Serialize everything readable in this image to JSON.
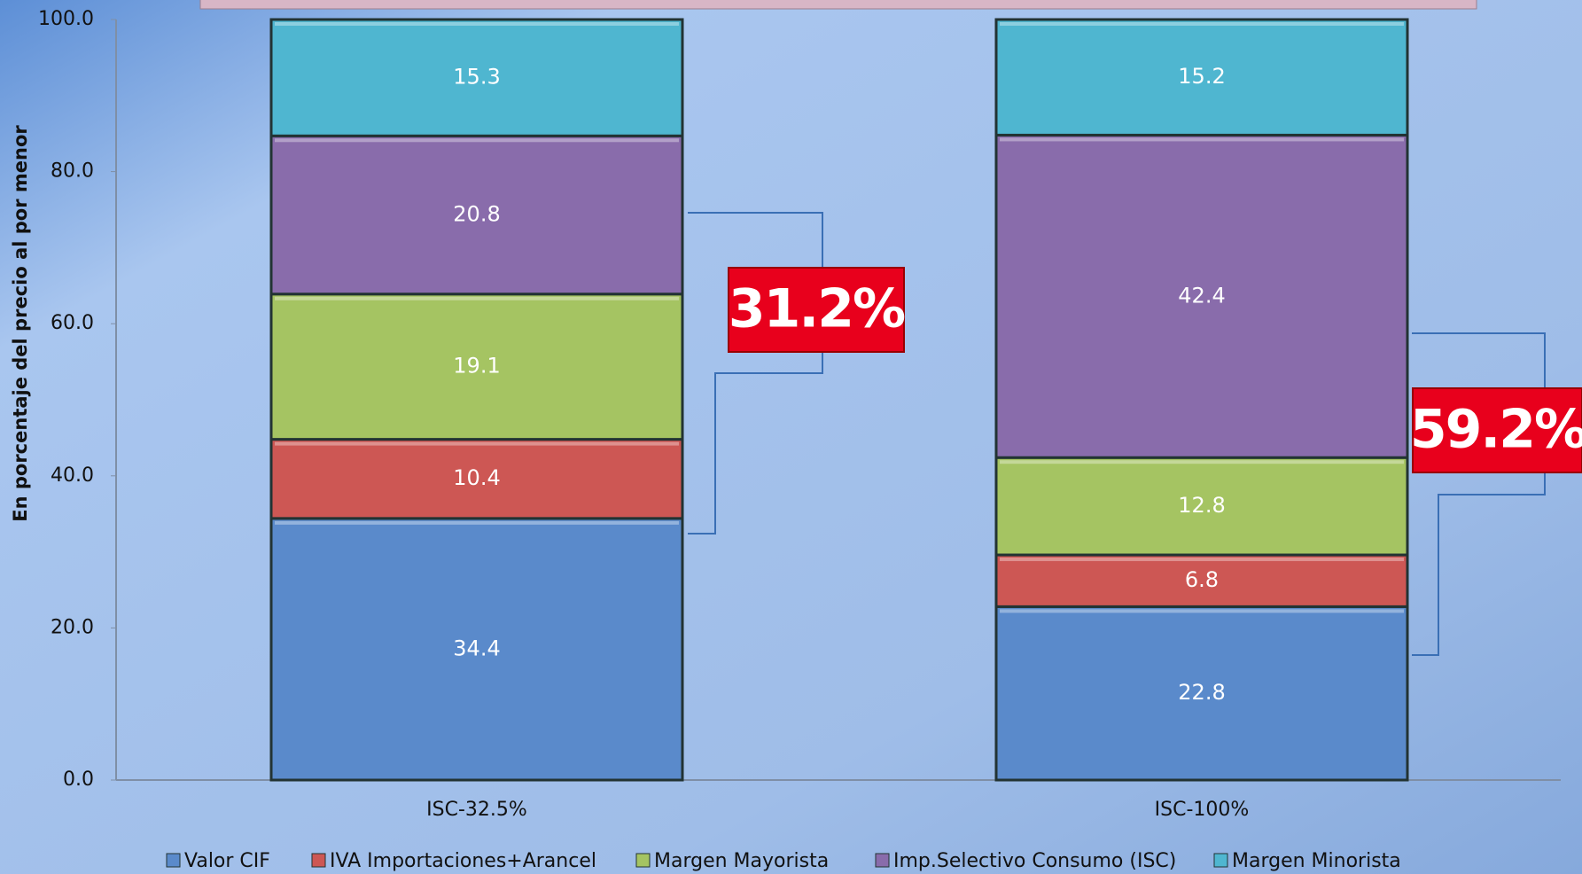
{
  "chart_data": {
    "type": "bar",
    "stacked": true,
    "y_label": "En porcentaje del precio al por menor",
    "categories": [
      "ISC-32.5%",
      "ISC-100%"
    ],
    "series": [
      {
        "name": "Valor CIF",
        "color": "#5a8acb",
        "values": [
          34.4,
          22.8
        ]
      },
      {
        "name": "IVA Importaciones+Arancel",
        "color": "#cd5754",
        "values": [
          10.4,
          6.8
        ]
      },
      {
        "name": "Margen Mayorista",
        "color": "#a5c462",
        "values": [
          19.1,
          12.8
        ]
      },
      {
        "name": "Imp.Selectivo Consumo (ISC)",
        "color": "#896cab",
        "values": [
          20.8,
          42.4
        ]
      },
      {
        "name": "Margen Minorista",
        "color": "#4fb6d0",
        "values": [
          15.3,
          15.2
        ]
      }
    ],
    "ylim": [
      0,
      100
    ],
    "yticks": [
      {
        "value": 0,
        "label": "0.0"
      },
      {
        "value": 20,
        "label": "20.0"
      },
      {
        "value": 40,
        "label": "40.0"
      },
      {
        "value": 60,
        "label": "60.0"
      },
      {
        "value": 80,
        "label": "80.0"
      },
      {
        "value": 100,
        "label": "100.0"
      }
    ],
    "annotations": [
      "31.2%",
      "59.2%"
    ],
    "legend": "bottom"
  }
}
